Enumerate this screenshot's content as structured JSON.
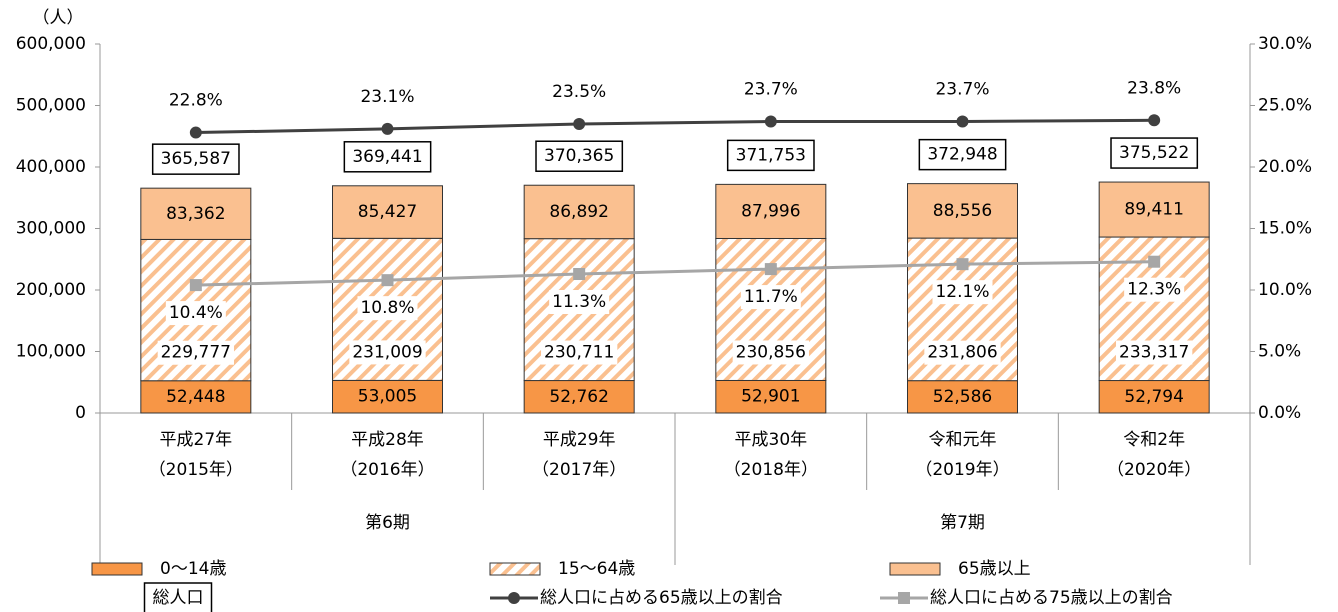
{
  "chart_data": {
    "type": "bar",
    "stacked": true,
    "y_unit": "（人）",
    "categories": [
      [
        "平成27年",
        "（2015年）"
      ],
      [
        "平成28年",
        "（2016年）"
      ],
      [
        "平成29年",
        "（2017年）"
      ],
      [
        "平成30年",
        "（2018年）"
      ],
      [
        "令和元年",
        "（2019年）"
      ],
      [
        "令和2年",
        "（2020年）"
      ]
    ],
    "groups": [
      {
        "label": "第6期",
        "span": 3
      },
      {
        "label": "第7期",
        "span": 3
      }
    ],
    "series": [
      {
        "name": "0～14歳",
        "color": "#F79646",
        "pattern": "solid",
        "values": [
          52448,
          53005,
          52762,
          52901,
          52586,
          52794
        ],
        "value_labels": [
          "52,448",
          "53,005",
          "52,762",
          "52,901",
          "52,586",
          "52,794"
        ]
      },
      {
        "name": "15～64歳",
        "color": "#FAC090",
        "pattern": "hatch",
        "values": [
          229777,
          231009,
          230711,
          230856,
          231806,
          233317
        ],
        "value_labels": [
          "229,777",
          "231,009",
          "230,711",
          "230,856",
          "231,806",
          "233,317"
        ]
      },
      {
        "name": "65歳以上",
        "color": "#FAC090",
        "pattern": "solid",
        "values": [
          83362,
          85427,
          86892,
          87996,
          88556,
          89411
        ],
        "value_labels": [
          "83,362",
          "85,427",
          "86,892",
          "87,996",
          "88,556",
          "89,411"
        ]
      }
    ],
    "totals": {
      "name": "総人口",
      "values": [
        365587,
        369441,
        370365,
        371753,
        372948,
        375522
      ],
      "value_labels": [
        "365,587",
        "369,441",
        "370,365",
        "371,753",
        "372,948",
        "375,522"
      ]
    },
    "line_series": [
      {
        "name": "総人口に占める65歳以上の割合",
        "color": "#404040",
        "marker": "circle",
        "axis": "y2",
        "values": [
          22.8,
          23.1,
          23.5,
          23.7,
          23.7,
          23.8
        ],
        "value_labels": [
          "22.8%",
          "23.1%",
          "23.5%",
          "23.7%",
          "23.7%",
          "23.8%"
        ]
      },
      {
        "name": "総人口に占める75歳以上の割合",
        "color": "#A6A6A6",
        "marker": "square",
        "axis": "y2",
        "values": [
          10.4,
          10.8,
          11.3,
          11.7,
          12.1,
          12.3
        ],
        "value_labels": [
          "10.4%",
          "10.8%",
          "11.3%",
          "11.7%",
          "12.1%",
          "12.3%"
        ]
      }
    ],
    "ylim": [
      0,
      600000
    ],
    "yticks": [
      0,
      {
        "value": 100000,
        "label": "100,000"
      },
      {
        "value": 200000,
        "label": "200,000"
      },
      {
        "value": 300000,
        "label": "300,000"
      },
      {
        "value": 400000,
        "label": "400,000"
      },
      {
        "value": 500000,
        "label": "500,000"
      },
      {
        "value": 600000,
        "label": "600,000"
      }
    ],
    "y2lim": [
      0,
      30
    ],
    "y2ticks": [
      {
        "value": 0,
        "label": "0.0%"
      },
      {
        "value": 5,
        "label": "5.0%"
      },
      {
        "value": 10,
        "label": "10.0%"
      },
      {
        "value": 15,
        "label": "15.0%"
      },
      {
        "value": 20,
        "label": "20.0%"
      },
      {
        "value": 25,
        "label": "25.0%"
      },
      {
        "value": 30,
        "label": "30.0%"
      }
    ],
    "grid": false
  }
}
